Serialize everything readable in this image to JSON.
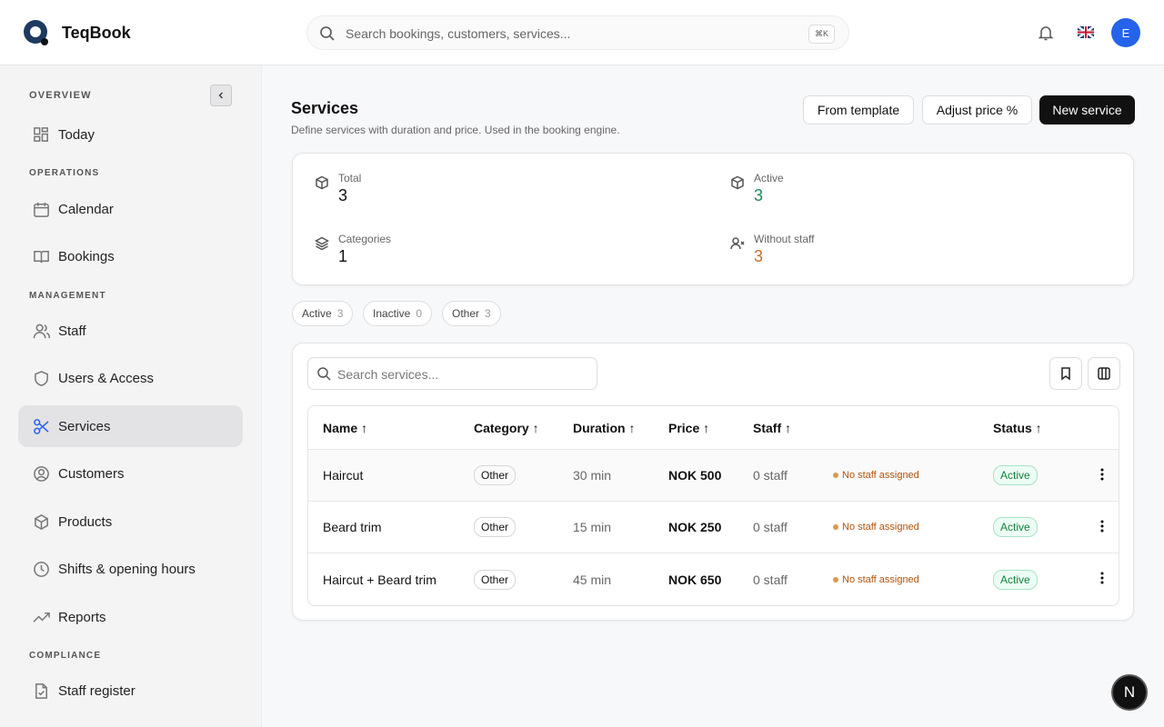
{
  "header": {
    "brand": "TeqBook",
    "search_placeholder": "Search bookings, customers, services...",
    "shortcut": "⌘K",
    "avatar": "E"
  },
  "sidebar": {
    "sections": [
      {
        "title": "OVERVIEW",
        "items": [
          "Today"
        ]
      },
      {
        "title": "OPERATIONS",
        "items": [
          "Calendar",
          "Bookings"
        ]
      },
      {
        "title": "MANAGEMENT",
        "items": [
          "Staff",
          "Users & Access",
          "Services",
          "Customers",
          "Products",
          "Shifts & opening hours",
          "Reports"
        ]
      },
      {
        "title": "COMPLIANCE",
        "items": [
          "Staff register"
        ]
      }
    ]
  },
  "page": {
    "title": "Services",
    "subtitle": "Define services with duration and price. Used in the booking engine.",
    "actions": [
      "From template",
      "Adjust price %",
      "New service"
    ]
  },
  "stats": [
    {
      "label": "Total",
      "value": 3
    },
    {
      "label": "Active",
      "value": 3
    },
    {
      "label": "Categories",
      "value": 1
    },
    {
      "label": "Without staff",
      "value": 3
    }
  ],
  "filters": [
    {
      "label": "Active",
      "count": 3
    },
    {
      "label": "Inactive",
      "count": 0
    },
    {
      "label": "Other",
      "count": 3
    }
  ],
  "table": {
    "search_placeholder": "Search services...",
    "columns": [
      "Name",
      "Category",
      "Duration",
      "Price",
      "Staff",
      "Status"
    ],
    "rows": [
      [
        "Haircut",
        "Other",
        "30 min",
        "NOK 500",
        "0 staff",
        "No staff assigned",
        "Active"
      ],
      [
        "Beard trim",
        "Other",
        "15 min",
        "NOK 250",
        "0 staff",
        "No staff assigned",
        "Active"
      ],
      [
        "Haircut + Beard trim",
        "Other",
        "45 min",
        "NOK 650",
        "0 staff",
        "No staff assigned",
        "Active"
      ]
    ]
  },
  "dev_badge": "N"
}
